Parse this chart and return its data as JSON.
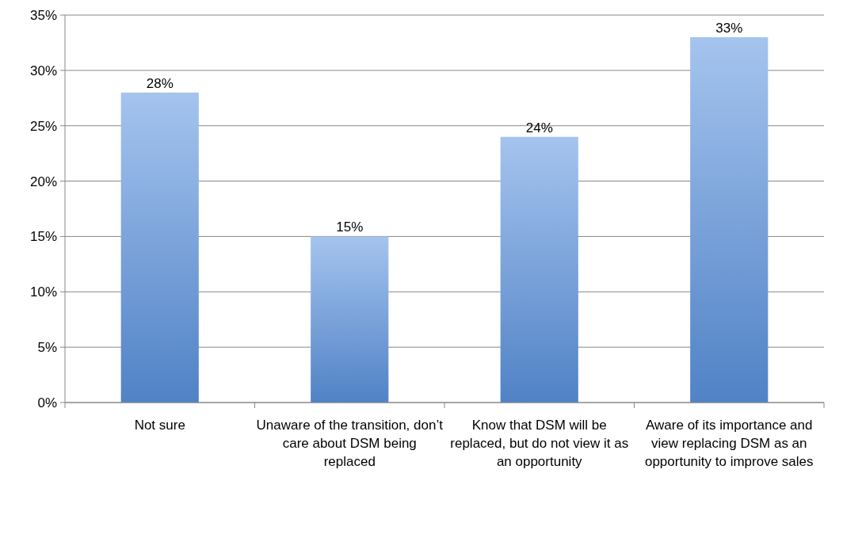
{
  "chart_data": {
    "type": "bar",
    "categories": [
      "Not sure",
      "Unaware of the transition, don’t care about DSM being replaced",
      "Know that DSM will be replaced, but do not view it as an opportunity",
      "Aware of its importance and view replacing DSM as an opportunity to improve sales"
    ],
    "values": [
      28,
      15,
      24,
      33
    ],
    "value_labels": [
      "28%",
      "15%",
      "24%",
      "33%"
    ],
    "color": "#5b93e0",
    "ylim": [
      0,
      35
    ],
    "yticks": [
      {
        "value": 0,
        "label": "0%"
      },
      {
        "value": 5,
        "label": "5%"
      },
      {
        "value": 10,
        "label": "10%"
      },
      {
        "value": 15,
        "label": "15%"
      },
      {
        "value": 20,
        "label": "20%"
      },
      {
        "value": 25,
        "label": "25%"
      },
      {
        "value": 30,
        "label": "30%"
      },
      {
        "value": 35,
        "label": "35%"
      }
    ],
    "grid": "y"
  }
}
